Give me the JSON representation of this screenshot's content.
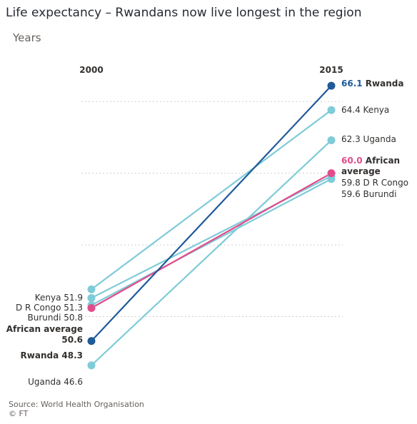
{
  "title": "Life expectancy – Rwandans now live longest in the region",
  "subtitle": "Years",
  "source": "Source: World Health Organisation",
  "credit": "© FT",
  "colors": {
    "rwanda": "#1f5a99",
    "african_average": "#e34c8a",
    "others": "#7fcbd8",
    "grid": "#cfcfcf",
    "text": "#33302e"
  },
  "chart_data": {
    "type": "line",
    "subtype": "slope",
    "title": "Life expectancy – Rwandans now live longest in the region",
    "ylabel": "Years",
    "categories": [
      "2000",
      "2015"
    ],
    "ylim": [
      45,
      67.5
    ],
    "grid": true,
    "series": [
      {
        "name": "Rwanda",
        "values": [
          48.3,
          66.1
        ],
        "color": "#1f5a99"
      },
      {
        "name": "Kenya",
        "values": [
          51.9,
          64.4
        ],
        "color": "#7fcbd8"
      },
      {
        "name": "Uganda",
        "values": [
          46.6,
          62.3
        ],
        "color": "#7fcbd8"
      },
      {
        "name": "African average",
        "values": [
          50.6,
          60.0
        ],
        "color": "#e34c8a"
      },
      {
        "name": "D R Congo",
        "values": [
          51.3,
          59.8
        ],
        "color": "#7fcbd8"
      },
      {
        "name": "Burundi",
        "values": [
          50.8,
          59.6
        ],
        "color": "#7fcbd8"
      }
    ],
    "left_labels": [
      {
        "key": "kenya",
        "text": "Kenya 51.9",
        "bold": false
      },
      {
        "key": "drc",
        "text": "D R Congo 51.3",
        "bold": false
      },
      {
        "key": "burundi",
        "text": "Burundi 50.8",
        "bold": false
      },
      {
        "key": "african-average-1",
        "text": "African average",
        "bold": true
      },
      {
        "key": "african-average-2",
        "text": "50.6",
        "bold": true
      },
      {
        "key": "rwanda",
        "text": "Rwanda 48.3",
        "bold": true
      },
      {
        "key": "uganda",
        "text": "Uganda 46.6",
        "bold": false
      }
    ],
    "right_labels": [
      {
        "key": "rwanda",
        "parts": [
          {
            "text": "66.1",
            "color": "#1f5a99",
            "bold": true
          },
          {
            "text": " Rwanda",
            "color": "#33302e",
            "bold": true
          }
        ]
      },
      {
        "key": "kenya",
        "parts": [
          {
            "text": "64.4 Kenya",
            "color": "#33302e",
            "bold": false
          }
        ]
      },
      {
        "key": "uganda",
        "parts": [
          {
            "text": "62.3 Uganda",
            "color": "#33302e",
            "bold": false
          }
        ]
      },
      {
        "key": "african-average-1",
        "parts": [
          {
            "text": "60.0",
            "color": "#e34c8a",
            "bold": true
          },
          {
            "text": " African",
            "color": "#33302e",
            "bold": true
          }
        ]
      },
      {
        "key": "african-average-2",
        "parts": [
          {
            "text": "average",
            "color": "#33302e",
            "bold": true
          }
        ]
      },
      {
        "key": "drc",
        "parts": [
          {
            "text": "59.8 D R Congo",
            "color": "#33302e",
            "bold": false
          }
        ]
      },
      {
        "key": "burundi",
        "parts": [
          {
            "text": "59.6 Burundi",
            "color": "#33302e",
            "bold": false
          }
        ]
      }
    ]
  }
}
